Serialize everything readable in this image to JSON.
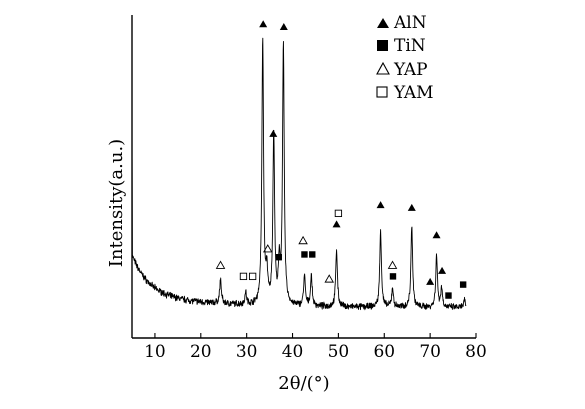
{
  "chart_data": {
    "type": "line",
    "title": "",
    "xlabel": "2θ/(°)",
    "ylabel": "Intensity(a.u.)",
    "xlim": [
      5,
      80
    ],
    "x_ticks": [
      10,
      20,
      30,
      40,
      50,
      60,
      70,
      80
    ],
    "y_ticks_shown": false,
    "grid": false,
    "legend_position": "top-right",
    "legend": [
      {
        "label": "AlN",
        "marker": "filled-triangle"
      },
      {
        "label": "TiN",
        "marker": "filled-square"
      },
      {
        "label": "YAP",
        "marker": "open-triangle"
      },
      {
        "label": "YAM",
        "marker": "open-square"
      }
    ],
    "peaks": [
      {
        "x": 24.3,
        "height": 0.087
      },
      {
        "x": 29.8,
        "height": 0.043
      },
      {
        "x": 33.5,
        "height": 0.97
      },
      {
        "x": 34.4,
        "height": 0.11
      },
      {
        "x": 35.9,
        "height": 0.63
      },
      {
        "x": 37.1,
        "height": 0.135
      },
      {
        "x": 38.0,
        "height": 0.95
      },
      {
        "x": 42.6,
        "height": 0.11
      },
      {
        "x": 44.1,
        "height": 0.11
      },
      {
        "x": 49.6,
        "height": 0.21
      },
      {
        "x": 59.2,
        "height": 0.28
      },
      {
        "x": 61.8,
        "height": 0.07
      },
      {
        "x": 66.0,
        "height": 0.3
      },
      {
        "x": 71.4,
        "height": 0.19
      },
      {
        "x": 72.5,
        "height": 0.07
      },
      {
        "x": 77.5,
        "height": 0.025
      }
    ],
    "markers": [
      {
        "phase": "AlN",
        "x": 33.6,
        "y": 1.05
      },
      {
        "phase": "AlN",
        "x": 38.1,
        "y": 1.04
      },
      {
        "phase": "AlN",
        "x": 35.8,
        "y": 0.65
      },
      {
        "phase": "AlN",
        "x": 49.6,
        "y": 0.32
      },
      {
        "phase": "AlN",
        "x": 59.2,
        "y": 0.39
      },
      {
        "phase": "AlN",
        "x": 66.0,
        "y": 0.38
      },
      {
        "phase": "AlN",
        "x": 71.4,
        "y": 0.28
      },
      {
        "phase": "AlN",
        "x": 70.0,
        "y": 0.11
      },
      {
        "phase": "AlN",
        "x": 72.6,
        "y": 0.15
      },
      {
        "phase": "TiN",
        "x": 37.0,
        "y": 0.2
      },
      {
        "phase": "TiN",
        "x": 42.6,
        "y": 0.21
      },
      {
        "phase": "TiN",
        "x": 44.3,
        "y": 0.21
      },
      {
        "phase": "TiN",
        "x": 61.9,
        "y": 0.13
      },
      {
        "phase": "TiN",
        "x": 74.0,
        "y": 0.06
      },
      {
        "phase": "TiN",
        "x": 77.2,
        "y": 0.1
      },
      {
        "phase": "YAP",
        "x": 24.3,
        "y": 0.17
      },
      {
        "phase": "YAP",
        "x": 34.6,
        "y": 0.23
      },
      {
        "phase": "YAP",
        "x": 42.3,
        "y": 0.26
      },
      {
        "phase": "YAP",
        "x": 48.0,
        "y": 0.12
      },
      {
        "phase": "YAP",
        "x": 61.8,
        "y": 0.17
      },
      {
        "phase": "YAM",
        "x": 29.3,
        "y": 0.13
      },
      {
        "phase": "YAM",
        "x": 31.3,
        "y": 0.13
      },
      {
        "phase": "YAM",
        "x": 50.0,
        "y": 0.36
      }
    ]
  }
}
